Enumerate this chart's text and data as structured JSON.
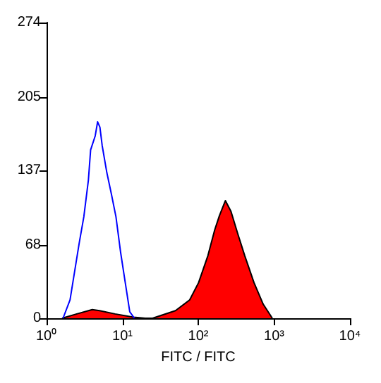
{
  "chart_data": {
    "type": "area",
    "xlabel": "FITC / FITC",
    "log": "x",
    "xlim": [
      1,
      10000
    ],
    "xticks": [
      {
        "value": 1,
        "label": "10⁰"
      },
      {
        "value": 10,
        "label": "10¹"
      },
      {
        "value": 100,
        "label": "10²"
      },
      {
        "value": 1000,
        "label": "10³"
      },
      {
        "value": 10000,
        "label": "10⁴"
      }
    ],
    "ylim": [
      0,
      274
    ],
    "yticks": [
      0,
      68,
      137,
      205,
      274
    ],
    "grid": false,
    "marker": "none",
    "series": [
      {
        "color": "#ff0000",
        "x": [
          1.6,
          2.5,
          4,
          5,
          8,
          14,
          20,
          25,
          50,
          77,
          101,
          134,
          165,
          190,
          228,
          270,
          333,
          410,
          543,
          718,
          947
        ],
        "values": [
          0,
          4,
          8,
          7,
          4,
          1,
          0,
          0,
          7,
          17,
          33,
          58,
          82,
          95,
          109,
          99,
          78,
          58,
          33,
          13,
          0
        ]
      },
      {
        "type": "line",
        "color": "#0000ff",
        "x": [
          1.65,
          2.04,
          2.7,
          3.1,
          3.56,
          3.81,
          4.38,
          4.71,
          5.05,
          5.41,
          6.23,
          7.16,
          8.22,
          9.47,
          10.9,
          12.5,
          14.4
        ],
        "values": [
          0,
          17,
          70,
          94,
          128,
          156,
          169,
          182,
          177,
          160,
          135,
          115,
          94,
          61,
          33,
          6,
          0
        ]
      }
    ]
  }
}
